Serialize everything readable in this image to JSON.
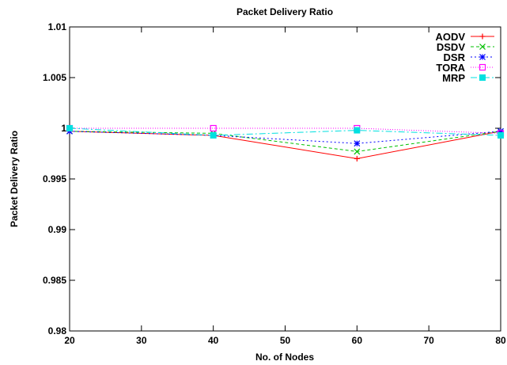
{
  "chart_data": {
    "type": "line",
    "title": "Packet Delivery Ratio",
    "xlabel": "No. of Nodes",
    "ylabel": "Packet Delivery Ratio",
    "xlim": [
      20,
      80
    ],
    "ylim": [
      0.98,
      1.01
    ],
    "xticks": [
      20,
      30,
      40,
      50,
      60,
      70,
      80
    ],
    "yticks": [
      0.98,
      0.985,
      0.99,
      0.995,
      1,
      1.005,
      1.01
    ],
    "ytick_labels": [
      "0.98",
      "0.985",
      "0.99",
      "0.995",
      "1",
      "1.005",
      "1.01"
    ],
    "grid": false,
    "legend_position": "top-right",
    "x": [
      20,
      40,
      60,
      80
    ],
    "series": [
      {
        "name": "AODV",
        "values": [
          0.9997,
          0.9993,
          0.997,
          0.9997
        ],
        "color": "#ff0000",
        "dash": "",
        "marker": "plus"
      },
      {
        "name": "DSDV",
        "values": [
          0.9997,
          0.9995,
          0.9977,
          0.9997
        ],
        "color": "#00c000",
        "dash": "4,3",
        "marker": "cross"
      },
      {
        "name": "DSR",
        "values": [
          0.9997,
          0.9993,
          0.9985,
          0.9997
        ],
        "color": "#0000ff",
        "dash": "2,3",
        "marker": "star"
      },
      {
        "name": "TORA",
        "values": [
          1.0,
          1.0,
          1.0,
          0.9995
        ],
        "color": "#ff00ff",
        "dash": "1,2",
        "marker": "open-square"
      },
      {
        "name": "MRP",
        "values": [
          1.0,
          0.9993,
          0.9998,
          0.9993
        ],
        "color": "#00e0e0",
        "dash": "8,3,2,3",
        "marker": "filled-square"
      }
    ]
  }
}
